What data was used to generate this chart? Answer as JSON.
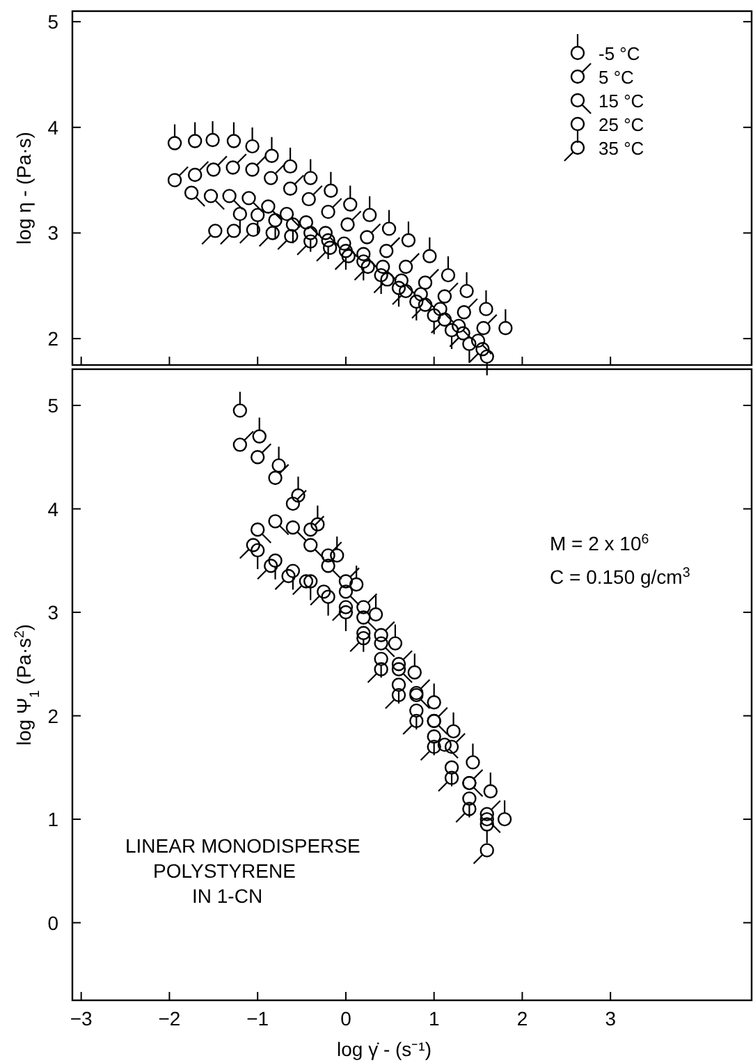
{
  "chart_data": [
    {
      "type": "scatter",
      "ylabel": "log η - (Pa·s)",
      "xlim": [
        -3.1,
        4.6
      ],
      "ylim": [
        1.75,
        5.1
      ],
      "xticks": [
        -3,
        -2,
        -1,
        0,
        1,
        2,
        3
      ],
      "yticks": [
        2,
        3,
        4,
        5
      ],
      "tick_labels": "y",
      "legend": "top right",
      "marker": "circle",
      "series": [
        {
          "name": "-5 °C",
          "color": "#000000",
          "x": [
            -1.94,
            -1.71,
            -1.51,
            -1.27,
            -1.06,
            -0.84,
            -0.63,
            -0.4,
            -0.17,
            0.05,
            0.27,
            0.49,
            0.71,
            0.95,
            1.16,
            1.37,
            1.59,
            1.81
          ],
          "values": [
            3.85,
            3.87,
            3.88,
            3.87,
            3.82,
            3.73,
            3.63,
            3.52,
            3.4,
            3.27,
            3.17,
            3.04,
            2.93,
            2.78,
            2.6,
            2.45,
            2.28,
            2.1
          ]
        },
        {
          "name": "5 °C",
          "color": "#000000",
          "x": [
            -1.94,
            -1.71,
            -1.5,
            -1.28,
            -1.06,
            -0.85,
            -0.63,
            -0.42,
            -0.2,
            0.02,
            0.24,
            0.46,
            0.68,
            0.9,
            1.12,
            1.34,
            1.56
          ],
          "values": [
            3.5,
            3.55,
            3.6,
            3.62,
            3.6,
            3.52,
            3.42,
            3.32,
            3.2,
            3.08,
            2.96,
            2.83,
            2.68,
            2.53,
            2.4,
            2.25,
            2.1
          ]
        },
        {
          "name": "15 °C",
          "color": "#000000",
          "x": [
            -1.75,
            -1.53,
            -1.32,
            -1.1,
            -0.88,
            -0.67,
            -0.45,
            -0.23,
            -0.02,
            0.2,
            0.42,
            0.63,
            0.85,
            1.07,
            1.28,
            1.5
          ],
          "values": [
            3.38,
            3.35,
            3.35,
            3.33,
            3.25,
            3.18,
            3.1,
            3.0,
            2.9,
            2.8,
            2.68,
            2.55,
            2.42,
            2.28,
            2.12,
            1.98
          ]
        },
        {
          "name": "25 °C",
          "color": "#000000",
          "x": [
            -1.2,
            -1.0,
            -0.8,
            -0.6,
            -0.4,
            -0.2,
            0,
            0.2,
            0.4,
            0.6,
            0.8,
            1.0,
            1.2,
            1.4,
            1.6
          ],
          "values": [
            3.18,
            3.17,
            3.12,
            3.08,
            3.0,
            2.93,
            2.83,
            2.73,
            2.6,
            2.48,
            2.35,
            2.22,
            2.08,
            1.95,
            1.83
          ]
        },
        {
          "name": "35 °C",
          "color": "#000000",
          "x": [
            -1.48,
            -1.27,
            -1.05,
            -0.83,
            -0.62,
            -0.4,
            -0.18,
            0.03,
            0.25,
            0.47,
            0.68,
            0.9,
            1.12,
            1.33,
            1.55
          ],
          "values": [
            3.02,
            3.02,
            3.03,
            3.0,
            2.97,
            2.92,
            2.86,
            2.78,
            2.68,
            2.56,
            2.45,
            2.32,
            2.18,
            2.05,
            1.9
          ]
        }
      ]
    },
    {
      "type": "scatter",
      "xlabel": "log γ̇ - (s⁻¹)",
      "ylabel": "log Ψ$_{1}$ (Pa·s$^{2}$)",
      "xlim": [
        -3.1,
        4.6
      ],
      "ylim": [
        -0.75,
        5.35
      ],
      "xticks": [
        -3,
        -2,
        -1,
        0,
        1,
        2,
        3
      ],
      "yticks": [
        0,
        1,
        2,
        3,
        4,
        5
      ],
      "marker": "circle",
      "annotations": [
        "M = 2 x 10$^{6}$",
        "C = 0.150 g/cm$^{3}$",
        "LINEAR MONODISPERSE",
        "POLYSTYRENE",
        "IN 1-CN"
      ],
      "series": [
        {
          "color": "#000000",
          "x": [
            -1.2,
            -0.98,
            -0.76,
            -0.54,
            -0.32,
            -0.1,
            0.12,
            0.34,
            0.56,
            0.78,
            1.0,
            1.22,
            1.44,
            1.64,
            1.8
          ],
          "values": [
            4.95,
            4.7,
            4.42,
            4.13,
            3.85,
            3.55,
            3.27,
            2.98,
            2.7,
            2.42,
            2.13,
            1.85,
            1.55,
            1.27,
            1.0
          ]
        },
        {
          "color": "#000000",
          "x": [
            -1.2,
            -1.0,
            -0.8,
            -0.6,
            -0.4,
            -0.2,
            0,
            0.2,
            0.4,
            0.6,
            0.8,
            1.0,
            1.2,
            1.4,
            1.6
          ],
          "values": [
            4.62,
            4.5,
            4.3,
            4.05,
            3.8,
            3.55,
            3.3,
            3.05,
            2.78,
            2.5,
            2.22,
            1.95,
            1.7,
            1.35,
            1.05
          ]
        },
        {
          "color": "#000000",
          "x": [
            -1.0,
            -0.8,
            -0.6,
            -0.4,
            -0.2,
            0,
            0.2,
            0.4,
            0.6,
            0.8,
            1.0,
            1.12,
            1.4,
            1.6
          ],
          "values": [
            3.8,
            3.88,
            3.82,
            3.65,
            3.45,
            3.2,
            2.95,
            2.7,
            2.45,
            2.2,
            1.95,
            1.72,
            1.35,
            1.0
          ]
        },
        {
          "color": "#000000",
          "x": [
            -1.0,
            -0.8,
            -0.6,
            -0.4,
            -0.2,
            0,
            0.2,
            0.4,
            0.6,
            0.8,
            1.0,
            1.2,
            1.4,
            1.6
          ],
          "values": [
            3.6,
            3.5,
            3.4,
            3.3,
            3.15,
            3.0,
            2.8,
            2.55,
            2.3,
            2.05,
            1.8,
            1.5,
            1.2,
            0.95
          ]
        },
        {
          "color": "#000000",
          "x": [
            -1.05,
            -0.85,
            -0.65,
            -0.45,
            -0.25,
            0,
            0.2,
            0.4,
            0.6,
            0.8,
            1.0,
            1.2,
            1.4,
            1.6
          ],
          "values": [
            3.65,
            3.45,
            3.35,
            3.3,
            3.2,
            3.05,
            2.75,
            2.45,
            2.2,
            1.95,
            1.7,
            1.4,
            1.1,
            0.7
          ]
        }
      ]
    }
  ]
}
